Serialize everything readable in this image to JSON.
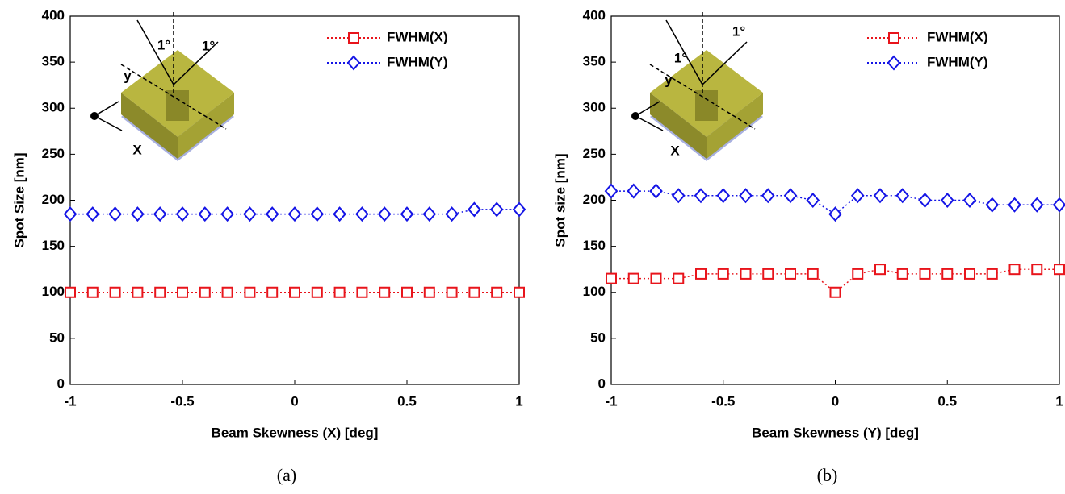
{
  "chart_data": [
    {
      "type": "line",
      "xlabel": "Beam Skewness (X) [deg]",
      "ylabel": "Spot Size [nm]",
      "caption": "(a)",
      "x": [
        -1,
        -0.9,
        -0.8,
        -0.7,
        -0.6,
        -0.5,
        -0.4,
        -0.3,
        -0.2,
        -0.1,
        0,
        0.1,
        0.2,
        0.3,
        0.4,
        0.5,
        0.6,
        0.7,
        0.8,
        0.9,
        1
      ],
      "series": [
        {
          "name": "FWHM(X)",
          "color": "#e8141b",
          "marker": "square",
          "values": [
            100,
            100,
            100,
            100,
            100,
            100,
            100,
            100,
            100,
            100,
            100,
            100,
            100,
            100,
            100,
            100,
            100,
            100,
            100,
            100,
            100
          ]
        },
        {
          "name": "FWHM(Y)",
          "color": "#1414e6",
          "marker": "diamond",
          "values": [
            185,
            185,
            185,
            185,
            185,
            185,
            185,
            185,
            185,
            185,
            185,
            185,
            185,
            185,
            185,
            185,
            185,
            185,
            190,
            190,
            190
          ]
        }
      ],
      "xlim": [
        -1,
        1
      ],
      "xticks": [
        -1,
        -0.5,
        0,
        0.5,
        1
      ],
      "ylim": [
        0,
        400
      ],
      "yticks": [
        0,
        50,
        100,
        150,
        200,
        250,
        300,
        350,
        400
      ],
      "legend": "upper right",
      "annotations": [
        "1°",
        "1°",
        "y",
        "X"
      ]
    },
    {
      "type": "line",
      "xlabel": "Beam Skewness (Y) [deg]",
      "ylabel": "Spot size [nm]",
      "caption": "(b)",
      "x": [
        -1,
        -0.9,
        -0.8,
        -0.7,
        -0.6,
        -0.5,
        -0.4,
        -0.3,
        -0.2,
        -0.1,
        0,
        0.1,
        0.2,
        0.3,
        0.4,
        0.5,
        0.6,
        0.7,
        0.8,
        0.9,
        1
      ],
      "series": [
        {
          "name": "FWHM(X)",
          "color": "#e8141b",
          "marker": "square",
          "values": [
            115,
            115,
            115,
            115,
            120,
            120,
            120,
            120,
            120,
            120,
            100,
            120,
            125,
            120,
            120,
            120,
            120,
            120,
            125,
            125,
            125
          ]
        },
        {
          "name": "FWHM(Y)",
          "color": "#1414e6",
          "marker": "diamond",
          "values": [
            210,
            210,
            210,
            205,
            205,
            205,
            205,
            205,
            205,
            200,
            185,
            205,
            205,
            205,
            200,
            200,
            200,
            195,
            195,
            195,
            195
          ]
        }
      ],
      "xlim": [
        -1,
        1
      ],
      "xticks": [
        -1,
        -0.5,
        0,
        0.5,
        1
      ],
      "ylim": [
        0,
        400
      ],
      "yticks": [
        0,
        50,
        100,
        150,
        200,
        250,
        300,
        350,
        400
      ],
      "legend": "upper right",
      "annotations": [
        "1°",
        "1°",
        "y",
        "X"
      ]
    }
  ]
}
